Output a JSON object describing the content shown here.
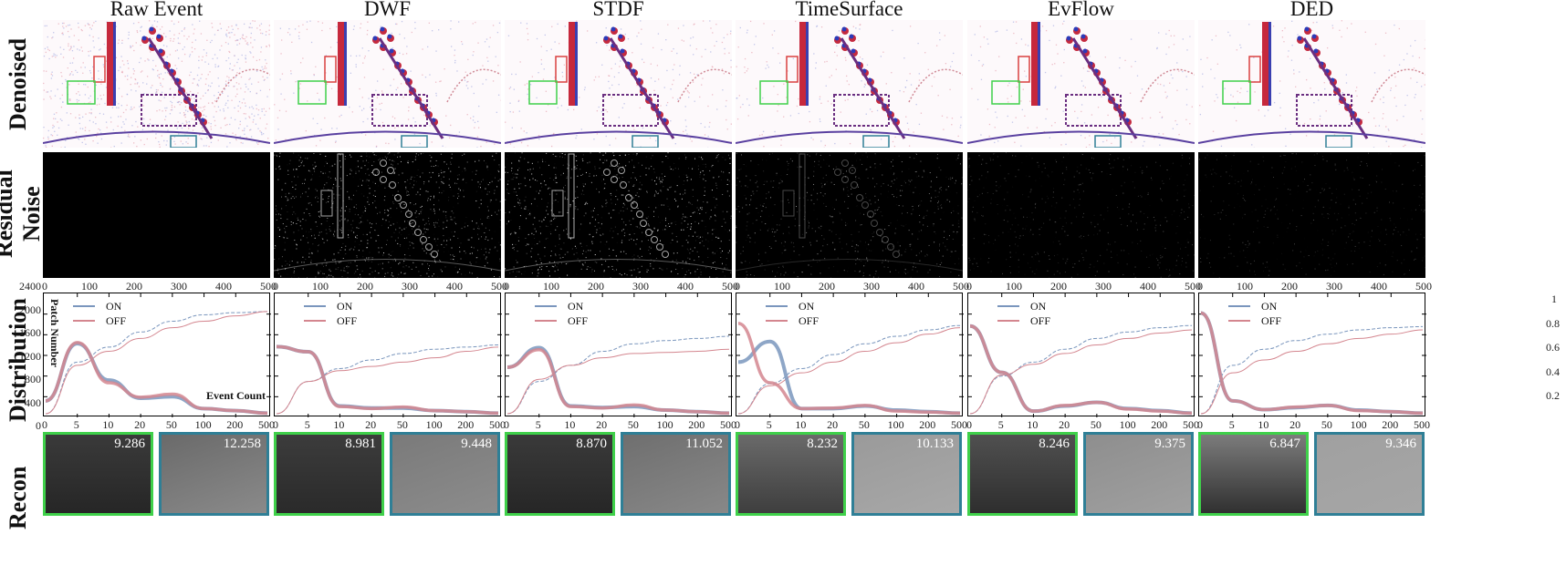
{
  "figure": {
    "columns": [
      "Raw Event",
      "DWF",
      "STDF",
      "TimeSurface",
      "EvFlow",
      "DED"
    ],
    "rows": [
      "Denoised",
      "Residual Noise",
      "Distribution",
      "Recon"
    ],
    "colors": {
      "on": "#7a96bd",
      "off": "#d4868f",
      "green_box": "#3fd04a",
      "blue_box": "#2f7f96",
      "red_box": "#d94040"
    },
    "residual_xticks": [
      "0",
      "100",
      "200",
      "300",
      "400",
      "500"
    ],
    "dist_xticks": [
      "0",
      "5",
      "10",
      "20",
      "50",
      "100",
      "200",
      "500"
    ],
    "left_yticks": [
      "2400",
      "2000",
      "1600",
      "1200",
      "800",
      "400",
      "0"
    ],
    "right_yticks": [
      "1",
      "0.8",
      "0.6",
      "0.4",
      "0.2"
    ],
    "legend": {
      "on": "ON",
      "off": "OFF"
    },
    "ylabel": "Patch Number",
    "xlabel": "Event Count",
    "recon_values": [
      [
        "9.286",
        "12.258"
      ],
      [
        "8.981",
        "9.448"
      ],
      [
        "8.870",
        "11.052"
      ],
      [
        "8.232",
        "10.133"
      ],
      [
        "8.246",
        "9.375"
      ],
      [
        "6.847",
        "9.346"
      ]
    ]
  },
  "chart_data": [
    {
      "type": "line",
      "title": "Raw Event",
      "xlabel": "Event Count",
      "ylabel": "Patch Number",
      "categories": [
        "0",
        "5",
        "10",
        "20",
        "50",
        "100",
        "200",
        "500"
      ],
      "ylim": [
        0,
        2400
      ],
      "y2lim": [
        0,
        1
      ],
      "series": [
        {
          "name": "ON",
          "values": [
            250,
            1360,
            650,
            300,
            330,
            100,
            60,
            10
          ]
        },
        {
          "name": "OFF",
          "values": [
            250,
            1380,
            600,
            320,
            380,
            100,
            60,
            10
          ]
        },
        {
          "name": "ON cumulative",
          "axis": "right",
          "values": [
            0,
            0.48,
            0.62,
            0.76,
            0.86,
            0.92,
            0.94,
            0.95
          ]
        },
        {
          "name": "OFF cumulative",
          "axis": "right",
          "values": [
            0,
            0.45,
            0.58,
            0.7,
            0.8,
            0.86,
            0.91,
            0.95
          ]
        }
      ]
    },
    {
      "type": "line",
      "title": "DWF",
      "categories": [
        "0",
        "5",
        "10",
        "20",
        "50",
        "100",
        "200",
        "500"
      ],
      "ylim": [
        0,
        2400
      ],
      "series": [
        {
          "name": "ON",
          "values": [
            1300,
            1200,
            150,
            110,
            110,
            60,
            40,
            10
          ]
        },
        {
          "name": "OFF",
          "values": [
            1300,
            1200,
            140,
            100,
            130,
            60,
            40,
            10
          ]
        },
        {
          "name": "ON cumulative",
          "axis": "right",
          "values": [
            0,
            0.3,
            0.42,
            0.5,
            0.56,
            0.6,
            0.62,
            0.64
          ]
        },
        {
          "name": "OFF cumulative",
          "axis": "right",
          "values": [
            0,
            0.3,
            0.4,
            0.44,
            0.48,
            0.52,
            0.58,
            0.62
          ]
        }
      ]
    },
    {
      "type": "line",
      "title": "STDF",
      "categories": [
        "0",
        "5",
        "10",
        "20",
        "50",
        "100",
        "200",
        "500"
      ],
      "ylim": [
        0,
        2400
      ],
      "series": [
        {
          "name": "ON",
          "values": [
            900,
            1280,
            150,
            120,
            140,
            70,
            40,
            10
          ]
        },
        {
          "name": "OFF",
          "values": [
            900,
            1240,
            140,
            110,
            170,
            70,
            40,
            10
          ]
        },
        {
          "name": "ON cumulative",
          "axis": "right",
          "values": [
            0,
            0.3,
            0.45,
            0.58,
            0.65,
            0.68,
            0.7,
            0.72
          ]
        },
        {
          "name": "OFF cumulative",
          "axis": "right",
          "values": [
            0,
            0.32,
            0.45,
            0.52,
            0.56,
            0.57,
            0.58,
            0.6
          ]
        }
      ]
    },
    {
      "type": "line",
      "title": "TimeSurface",
      "categories": [
        "0",
        "5",
        "10",
        "20",
        "50",
        "100",
        "200",
        "500"
      ],
      "ylim": [
        0,
        2400
      ],
      "series": [
        {
          "name": "ON",
          "values": [
            1000,
            1400,
            100,
            100,
            150,
            70,
            40,
            10
          ]
        },
        {
          "name": "OFF",
          "values": [
            1750,
            600,
            100,
            110,
            160,
            50,
            30,
            10
          ]
        },
        {
          "name": "ON cumulative",
          "axis": "right",
          "values": [
            0,
            0.28,
            0.42,
            0.55,
            0.65,
            0.72,
            0.78,
            0.82
          ]
        },
        {
          "name": "OFF cumulative",
          "axis": "right",
          "values": [
            0,
            0.26,
            0.38,
            0.48,
            0.58,
            0.66,
            0.74,
            0.8
          ]
        }
      ]
    },
    {
      "type": "line",
      "title": "EvFlow",
      "categories": [
        "0",
        "5",
        "10",
        "20",
        "50",
        "100",
        "200",
        "500"
      ],
      "ylim": [
        0,
        2400
      ],
      "series": [
        {
          "name": "ON",
          "values": [
            1700,
            800,
            50,
            150,
            220,
            100,
            60,
            10
          ]
        },
        {
          "name": "OFF",
          "values": [
            1700,
            800,
            50,
            160,
            220,
            90,
            50,
            10
          ]
        },
        {
          "name": "ON cumulative",
          "axis": "right",
          "values": [
            0,
            0.35,
            0.48,
            0.6,
            0.7,
            0.76,
            0.8,
            0.82
          ]
        },
        {
          "name": "OFF cumulative",
          "axis": "right",
          "values": [
            0,
            0.36,
            0.46,
            0.56,
            0.64,
            0.7,
            0.75,
            0.78
          ]
        }
      ]
    },
    {
      "type": "line",
      "title": "DED",
      "categories": [
        "0",
        "5",
        "10",
        "20",
        "50",
        "100",
        "200",
        "500"
      ],
      "ylim": [
        0,
        2400
      ],
      "y2lim": [
        0,
        1
      ],
      "series": [
        {
          "name": "ON",
          "values": [
            1950,
            250,
            80,
            120,
            160,
            70,
            40,
            10
          ]
        },
        {
          "name": "OFF",
          "values": [
            1950,
            250,
            80,
            130,
            160,
            60,
            40,
            10
          ]
        },
        {
          "name": "ON cumulative",
          "axis": "right",
          "values": [
            0,
            0.45,
            0.6,
            0.68,
            0.74,
            0.78,
            0.8,
            0.81
          ]
        },
        {
          "name": "OFF cumulative",
          "axis": "right",
          "values": [
            0,
            0.38,
            0.5,
            0.58,
            0.65,
            0.7,
            0.74,
            0.78
          ]
        }
      ]
    }
  ]
}
